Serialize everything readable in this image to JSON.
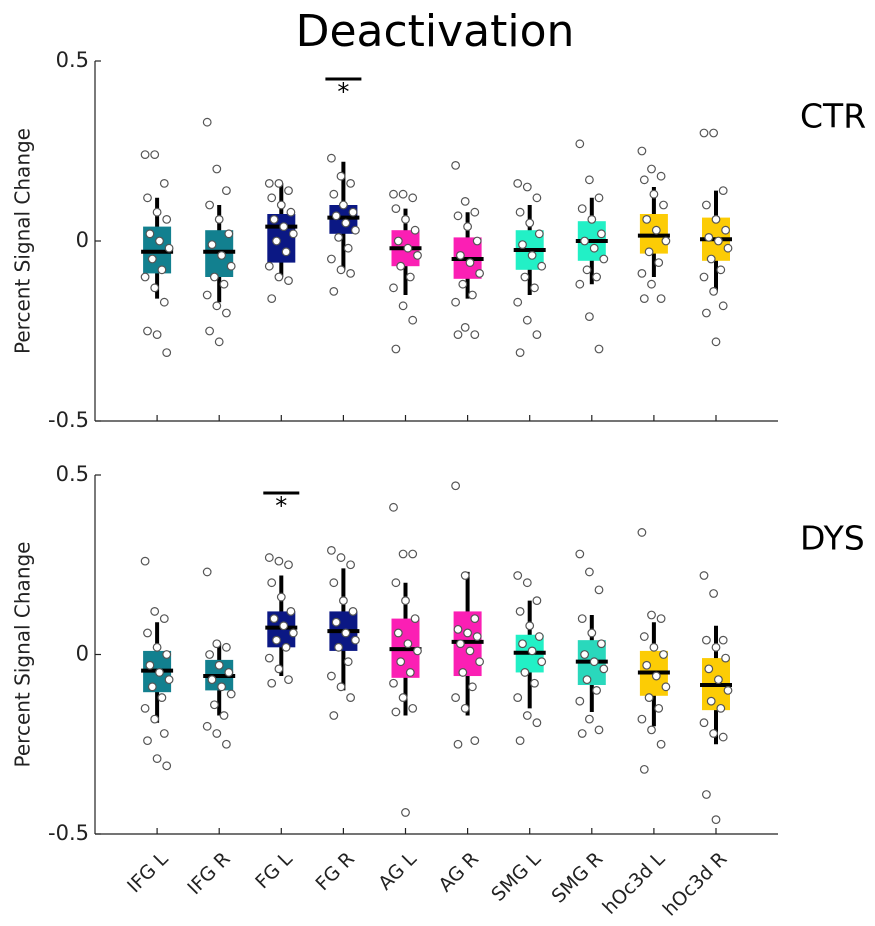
{
  "chart_data": [
    {
      "type": "box",
      "title": "Deactivation",
      "label": "CTR",
      "ylabel": "Percent Signal Change",
      "ylim": [
        -0.5,
        0.5
      ],
      "yticks": [
        0.5,
        0,
        -0.5
      ],
      "categories": [
        null,
        null,
        null,
        null,
        null,
        null,
        null,
        null,
        null,
        null
      ],
      "boxes": [
        {
          "color": "#12808f",
          "q1": -0.09,
          "median": -0.03,
          "q3": 0.04,
          "whisker_low": -0.16,
          "whisker_high": 0.12,
          "points": [
            0.24,
            0.24,
            0.16,
            0.12,
            0.08,
            0.06,
            0.02,
            0,
            -0.02,
            -0.05,
            -0.08,
            -0.1,
            -0.13,
            -0.17,
            -0.25,
            -0.26,
            -0.31
          ]
        },
        {
          "color": "#12808f",
          "q1": -0.1,
          "median": -0.03,
          "q3": 0.03,
          "whisker_low": -0.17,
          "whisker_high": 0.1,
          "points": [
            0.33,
            0.2,
            0.14,
            0.1,
            0.06,
            0.02,
            -0.01,
            -0.04,
            -0.07,
            -0.1,
            -0.12,
            -0.15,
            -0.18,
            -0.2,
            -0.25,
            -0.28
          ]
        },
        {
          "color": "#0b1884",
          "q1": -0.06,
          "median": 0.04,
          "q3": 0.075,
          "whisker_low": -0.1,
          "whisker_high": 0.16,
          "points": [
            0.16,
            0.16,
            0.14,
            0.12,
            0.1,
            0.08,
            0.06,
            0.04,
            0.02,
            0,
            -0.03,
            -0.07,
            -0.1,
            -0.11,
            -0.16
          ]
        },
        {
          "color": "#0b1884",
          "q1": 0.02,
          "median": 0.065,
          "q3": 0.1,
          "whisker_low": -0.08,
          "whisker_high": 0.22,
          "points": [
            0.23,
            0.18,
            0.16,
            0.13,
            0.1,
            0.08,
            0.07,
            0.05,
            0.03,
            0.01,
            -0.02,
            -0.05,
            -0.08,
            -0.09,
            -0.14
          ],
          "significance": {
            "label": "*",
            "y": 0.45
          }
        },
        {
          "color": "#fb1fb4",
          "q1": -0.07,
          "median": -0.02,
          "q3": 0.03,
          "whisker_low": -0.15,
          "whisker_high": 0.09,
          "points": [
            0.13,
            0.13,
            0.12,
            0.09,
            0.06,
            0.03,
            0,
            -0.02,
            -0.04,
            -0.07,
            -0.1,
            -0.13,
            -0.18,
            -0.22,
            -0.3
          ]
        },
        {
          "color": "#fb1fb4",
          "q1": -0.105,
          "median": -0.05,
          "q3": 0.01,
          "whisker_low": -0.16,
          "whisker_high": 0.08,
          "points": [
            0.21,
            0.11,
            0.08,
            0.07,
            0.04,
            0,
            -0.04,
            -0.06,
            -0.09,
            -0.12,
            -0.15,
            -0.17,
            -0.24,
            -0.26,
            -0.26
          ]
        },
        {
          "color": "#22f0c6",
          "q1": -0.08,
          "median": -0.025,
          "q3": 0.03,
          "whisker_low": -0.15,
          "whisker_high": 0.1,
          "points": [
            0.16,
            0.15,
            0.12,
            0.08,
            0.05,
            0.02,
            -0.01,
            -0.04,
            -0.07,
            -0.1,
            -0.13,
            -0.17,
            -0.22,
            -0.26,
            -0.31
          ]
        },
        {
          "color": "#22f0c6",
          "q1": -0.055,
          "median": 0,
          "q3": 0.055,
          "whisker_low": -0.12,
          "whisker_high": 0.12,
          "points": [
            0.27,
            0.17,
            0.12,
            0.09,
            0.06,
            0.02,
            0,
            -0.02,
            -0.05,
            -0.08,
            -0.1,
            -0.12,
            -0.21,
            -0.3
          ]
        },
        {
          "color": "#fccc05",
          "q1": -0.035,
          "median": 0.015,
          "q3": 0.075,
          "whisker_low": -0.1,
          "whisker_high": 0.15,
          "points": [
            0.25,
            0.2,
            0.18,
            0.17,
            0.13,
            0.1,
            0.06,
            0.03,
            0,
            -0.03,
            -0.06,
            -0.09,
            -0.12,
            -0.16,
            -0.16
          ]
        },
        {
          "color": "#fccc05",
          "q1": -0.055,
          "median": 0.005,
          "q3": 0.065,
          "whisker_low": -0.14,
          "whisker_high": 0.14,
          "points": [
            0.3,
            0.3,
            0.14,
            0.1,
            0.06,
            0.03,
            0.01,
            0,
            -0.02,
            -0.05,
            -0.08,
            -0.1,
            -0.14,
            -0.18,
            -0.2,
            -0.28
          ]
        }
      ]
    },
    {
      "type": "box",
      "label": "DYS",
      "ylabel": "Percent Signal Change",
      "ylim": [
        -0.5,
        0.5
      ],
      "yticks": [
        0.5,
        0,
        -0.5
      ],
      "categories": [
        "IFG L",
        "IFG R",
        "FG L",
        "FG R",
        "AG L",
        "AG R",
        "SMG L",
        "SMG R",
        "hOc3d L",
        "hOc3d R"
      ],
      "boxes": [
        {
          "color": "#12808f",
          "q1": -0.105,
          "median": -0.045,
          "q3": 0.01,
          "whisker_low": -0.19,
          "whisker_high": 0.09,
          "points": [
            0.26,
            0.12,
            0.1,
            0.06,
            0.02,
            0,
            -0.03,
            -0.05,
            -0.07,
            -0.09,
            -0.12,
            -0.15,
            -0.18,
            -0.22,
            -0.24,
            -0.29,
            -0.31
          ]
        },
        {
          "color": "#12808f",
          "q1": -0.1,
          "median": -0.06,
          "q3": -0.015,
          "whisker_low": -0.17,
          "whisker_high": 0.03,
          "points": [
            0.23,
            0.03,
            0.02,
            0,
            -0.03,
            -0.05,
            -0.07,
            -0.09,
            -0.11,
            -0.14,
            -0.17,
            -0.2,
            -0.22,
            -0.25
          ]
        },
        {
          "color": "#0b1884",
          "q1": 0.02,
          "median": 0.075,
          "q3": 0.12,
          "whisker_low": -0.06,
          "whisker_high": 0.22,
          "points": [
            0.27,
            0.26,
            0.25,
            0.2,
            0.16,
            0.12,
            0.1,
            0.08,
            0.06,
            0.04,
            0.02,
            -0.01,
            -0.04,
            -0.07,
            -0.08
          ],
          "significance": {
            "label": "*",
            "y": 0.45
          }
        },
        {
          "color": "#0b1884",
          "q1": 0.01,
          "median": 0.065,
          "q3": 0.12,
          "whisker_low": -0.1,
          "whisker_high": 0.24,
          "points": [
            0.29,
            0.27,
            0.25,
            0.2,
            0.15,
            0.12,
            0.09,
            0.06,
            0.04,
            0.02,
            -0.02,
            -0.06,
            -0.09,
            -0.12,
            -0.17
          ]
        },
        {
          "color": "#fb1fb4",
          "q1": -0.065,
          "median": 0.015,
          "q3": 0.1,
          "whisker_low": -0.17,
          "whisker_high": 0.2,
          "points": [
            0.41,
            0.28,
            0.28,
            0.2,
            0.15,
            0.1,
            0.06,
            0.03,
            0.01,
            -0.02,
            -0.05,
            -0.08,
            -0.12,
            -0.15,
            -0.16,
            -0.44
          ]
        },
        {
          "color": "#fb1fb4",
          "q1": -0.06,
          "median": 0.035,
          "q3": 0.12,
          "whisker_low": -0.17,
          "whisker_high": 0.23,
          "points": [
            0.47,
            0.22,
            0.1,
            0.07,
            0.06,
            0.05,
            0.03,
            0.01,
            -0.02,
            -0.05,
            -0.09,
            -0.12,
            -0.15,
            -0.24,
            -0.25
          ]
        },
        {
          "color": "#22f0c6",
          "q1": -0.05,
          "median": 0.005,
          "q3": 0.055,
          "whisker_low": -0.15,
          "whisker_high": 0.15,
          "points": [
            0.22,
            0.2,
            0.15,
            0.12,
            0.08,
            0.05,
            0.03,
            0.01,
            -0.02,
            -0.05,
            -0.08,
            -0.12,
            -0.17,
            -0.19,
            -0.24
          ]
        },
        {
          "color": "#2ad8bc",
          "q1": -0.085,
          "median": -0.02,
          "q3": 0.04,
          "whisker_low": -0.16,
          "whisker_high": 0.11,
          "points": [
            0.28,
            0.23,
            0.18,
            0.1,
            0.06,
            0.03,
            0,
            -0.02,
            -0.04,
            -0.07,
            -0.1,
            -0.13,
            -0.18,
            -0.21,
            -0.22
          ]
        },
        {
          "color": "#fccc05",
          "q1": -0.115,
          "median": -0.05,
          "q3": 0.01,
          "whisker_low": -0.2,
          "whisker_high": 0.09,
          "points": [
            0.34,
            0.11,
            0.1,
            0.05,
            0.02,
            0,
            -0.03,
            -0.06,
            -0.09,
            -0.12,
            -0.15,
            -0.18,
            -0.21,
            -0.25,
            -0.32
          ]
        },
        {
          "color": "#fccc05",
          "q1": -0.155,
          "median": -0.085,
          "q3": -0.01,
          "whisker_low": -0.25,
          "whisker_high": 0.08,
          "points": [
            0.22,
            0.17,
            0.04,
            0.04,
            0.02,
            -0.01,
            -0.04,
            -0.07,
            -0.1,
            -0.13,
            -0.15,
            -0.19,
            -0.22,
            -0.23,
            -0.39,
            -0.46
          ]
        }
      ]
    }
  ]
}
